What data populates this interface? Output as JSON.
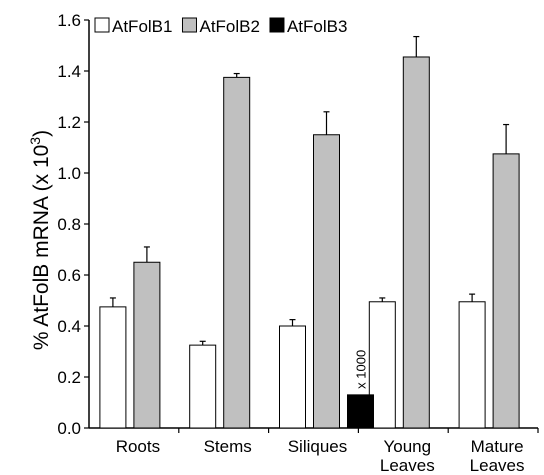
{
  "chart_data": {
    "type": "bar",
    "ylabel_main": "% AtFolB mRNA (x 10",
    "ylabel_exp": "3",
    "ylabel_close": ")",
    "ylim": [
      0,
      1.6
    ],
    "yticks": [
      "0.0",
      "0.2",
      "0.4",
      "0.6",
      "0.8",
      "1.0",
      "1.2",
      "1.4",
      "1.6"
    ],
    "categories": [
      {
        "line1": "Roots",
        "line2": ""
      },
      {
        "line1": "Stems",
        "line2": ""
      },
      {
        "line1": "Siliques",
        "line2": ""
      },
      {
        "line1": "Young",
        "line2": "Leaves"
      },
      {
        "line1": "Mature",
        "line2": "Leaves"
      }
    ],
    "series": [
      {
        "name": "AtFolB1",
        "color": "#ffffff",
        "values": [
          0.475,
          0.325,
          0.4,
          0.495,
          0.495
        ],
        "errors": [
          0.035,
          0.015,
          0.025,
          0.015,
          0.03
        ]
      },
      {
        "name": "AtFolB2",
        "color": "#c0c0c0",
        "values": [
          0.65,
          1.375,
          1.15,
          1.455,
          1.075
        ],
        "errors": [
          0.06,
          0.015,
          0.09,
          0.08,
          0.115
        ]
      },
      {
        "name": "AtFolB3",
        "color": "#000000",
        "values": [
          null,
          null,
          0.13,
          null,
          null
        ],
        "errors": [
          null,
          null,
          null,
          null,
          null
        ]
      }
    ],
    "annotations": [
      {
        "text": "x 1000",
        "series": 2,
        "category": 2
      }
    ],
    "legend_position": "top"
  }
}
